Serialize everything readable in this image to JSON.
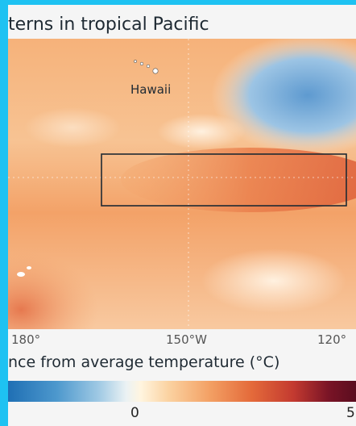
{
  "title": "terns in tropical Pacific",
  "map": {
    "place_label": "Hawaii",
    "colors": {
      "warm_light": "#fbd6a8",
      "warm_mid": "#f3a168",
      "warm_strong": "#e2663d",
      "cool": "#6fa7d6",
      "frame_border": "#1ec2f2"
    }
  },
  "longitude_labels": [
    "180°",
    "150°W",
    "120°"
  ],
  "legend": {
    "title": "nce from average temperature (°C)",
    "tick_zero": "0",
    "tick_max": "5"
  }
}
